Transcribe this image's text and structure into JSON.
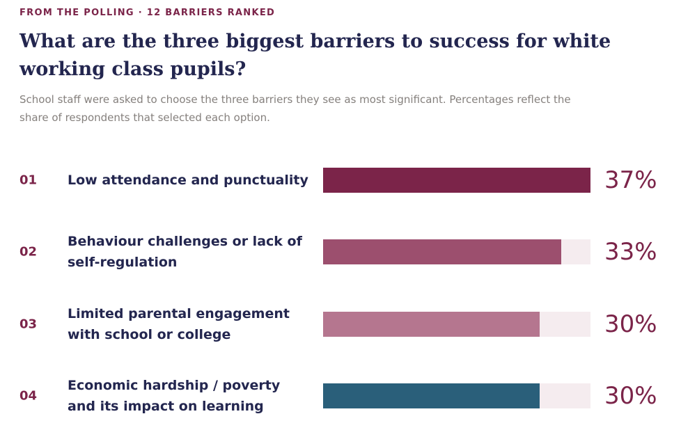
{
  "chart_data": {
    "type": "bar",
    "orientation": "horizontal",
    "kicker": "FROM THE POLLING · 12 BARRIERS RANKED",
    "title": "What are the three biggest barriers to success for white working class pupils?",
    "subtitle": "School staff were asked to choose the three barriers they see as most significant. Percentages reflect the share of respondents that selected each option.",
    "ranks": [
      "01",
      "02",
      "03",
      "04"
    ],
    "categories": [
      "Low attendance and punctuality",
      "Behaviour challenges or lack of self-regulation",
      "Limited parental engagement with school or college",
      "Economic hardship / poverty and its impact on learning"
    ],
    "values": [
      37,
      33,
      30,
      30
    ],
    "value_labels": [
      "37%",
      "33%",
      "30%",
      "30%"
    ],
    "colors": [
      "#7b2449",
      "#9c4f6e",
      "#b5768f",
      "#2a5f7a"
    ],
    "xlim": [
      0,
      37
    ]
  }
}
